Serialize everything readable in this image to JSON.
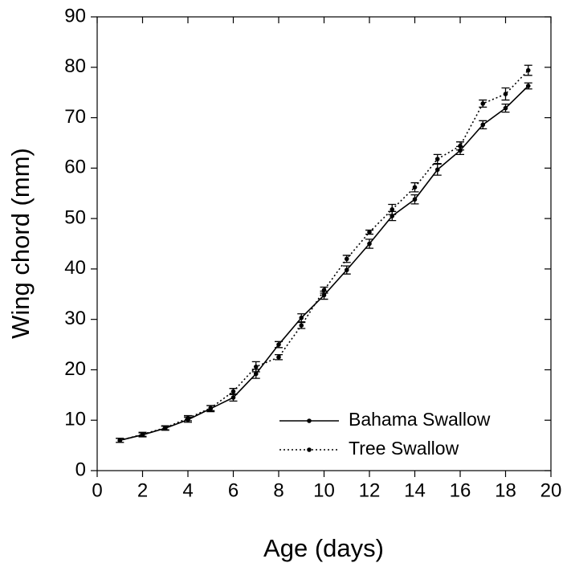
{
  "chart_data": {
    "type": "line",
    "x_label": "Age (days)",
    "y_label": "Wing chord (mm)",
    "x": [
      1,
      2,
      3,
      4,
      5,
      6,
      7,
      8,
      9,
      10,
      11,
      12,
      13,
      14,
      15,
      16,
      17,
      18,
      19
    ],
    "series": [
      {
        "name": "Bahama Swallow",
        "color": "#000000",
        "dash": "solid",
        "values": [
          6.0,
          7.1,
          8.4,
          10.1,
          12.3,
          14.5,
          19.2,
          25.0,
          30.3,
          34.8,
          39.8,
          45.0,
          50.5,
          53.8,
          59.7,
          63.5,
          68.6,
          71.9,
          76.3
        ],
        "errors": [
          0.4,
          0.4,
          0.4,
          0.5,
          0.6,
          0.7,
          0.9,
          0.6,
          0.8,
          0.8,
          0.8,
          0.9,
          0.9,
          0.9,
          1.1,
          0.8,
          0.8,
          0.8,
          0.6
        ]
      },
      {
        "name": "Tree Swallow",
        "color": "#000000",
        "dash": "dotted",
        "values": [
          6.0,
          7.2,
          8.5,
          10.4,
          12.4,
          15.7,
          20.6,
          22.5,
          28.8,
          35.8,
          42.0,
          47.3,
          51.8,
          56.2,
          61.8,
          64.4,
          72.8,
          74.7,
          79.4
        ],
        "errors": [
          0.4,
          0.4,
          0.4,
          0.5,
          0.5,
          0.6,
          1.0,
          0.5,
          0.6,
          0.6,
          0.7,
          0.4,
          1.0,
          0.9,
          0.9,
          0.8,
          0.7,
          1.2,
          1.0
        ]
      }
    ],
    "xlim": [
      0,
      20
    ],
    "xticks": [
      0,
      2,
      4,
      6,
      8,
      10,
      12,
      14,
      16,
      18,
      20
    ],
    "ylim": [
      0,
      90
    ],
    "yticks": [
      0,
      10,
      20,
      30,
      40,
      50,
      60,
      70,
      80,
      90
    ],
    "legend": "lower right",
    "grid": false
  }
}
